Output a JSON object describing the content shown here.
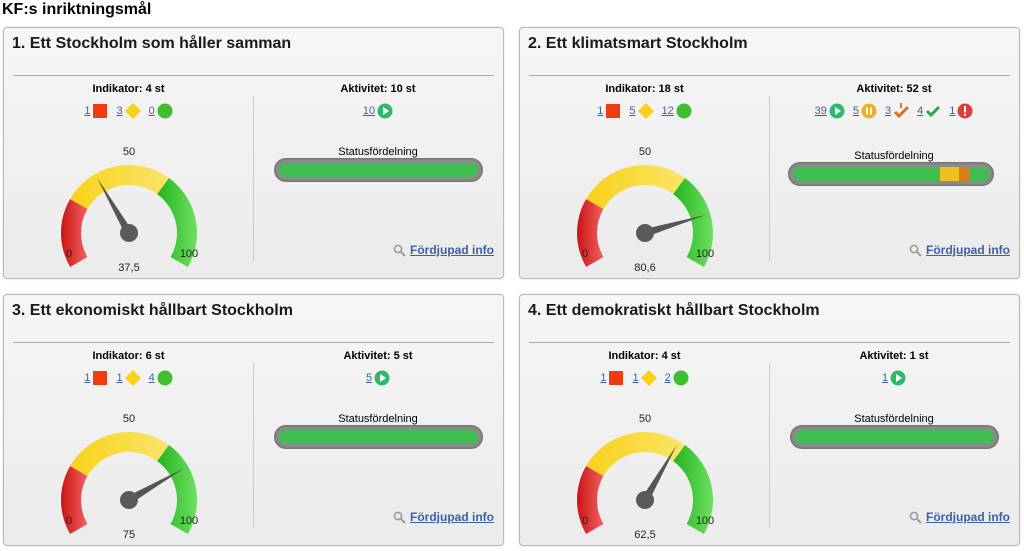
{
  "page_title": "KF:s inriktningsmål",
  "colors": {
    "red": "#f03a10",
    "yellow": "#f8cf19",
    "green": "#3fbf2f",
    "play": "#2fb86a",
    "pause": "#f0b020",
    "warn": "#e06f1a",
    "check": "#2ea84a",
    "alert": "#e23c3c",
    "bar_green": "#3fbf4f"
  },
  "cards": [
    {
      "title": "1. Ett Stockholm som håller samman",
      "indicator_heading": "Indikator: 4 st",
      "indicators": [
        {
          "count": "1",
          "icon": "red-square-icon"
        },
        {
          "count": "3",
          "icon": "yellow-diamond-icon"
        },
        {
          "count": "0",
          "icon": "green-circle-icon"
        }
      ],
      "activity_heading": "Aktivitet: 10 st",
      "activities": [
        {
          "count": "10",
          "icon": "play-icon"
        }
      ],
      "gauge": {
        "value": 37.5,
        "value_label": "37,5",
        "min_label": "0",
        "mid_label": "50",
        "max_label": "100",
        "min": 0,
        "max": 100
      },
      "status_label": "Statusfördelning",
      "status_distribution": [
        {
          "fraction": 1.0,
          "color": "#3fbf4f"
        }
      ],
      "more_info": "Fördjupad info"
    },
    {
      "title": "2. Ett klimatsmart Stockholm",
      "indicator_heading": "Indikator: 18 st",
      "indicators": [
        {
          "count": "1",
          "icon": "red-square-icon"
        },
        {
          "count": "5",
          "icon": "yellow-diamond-icon"
        },
        {
          "count": "12",
          "icon": "green-circle-icon"
        }
      ],
      "activity_heading": "Aktivitet: 52 st",
      "activities": [
        {
          "count": "39",
          "icon": "play-icon"
        },
        {
          "count": "5",
          "icon": "pause-icon"
        },
        {
          "count": "3",
          "icon": "warning-check-icon"
        },
        {
          "count": "4",
          "icon": "check-icon"
        },
        {
          "count": "1",
          "icon": "alert-icon"
        }
      ],
      "gauge": {
        "value": 80.6,
        "value_label": "80,6",
        "min_label": "0",
        "mid_label": "50",
        "max_label": "100",
        "min": 0,
        "max": 100
      },
      "status_label": "Statusfördelning",
      "status_distribution": [
        {
          "fraction": 0.75,
          "color": "#3fbf4f"
        },
        {
          "fraction": 0.096,
          "color": "#f0c020"
        },
        {
          "fraction": 0.058,
          "color": "#e07a1a"
        },
        {
          "fraction": 0.096,
          "color": "#3fbf4f"
        }
      ],
      "more_info": "Fördjupad info"
    },
    {
      "title": "3. Ett ekonomiskt hållbart Stockholm",
      "indicator_heading": "Indikator: 6 st",
      "indicators": [
        {
          "count": "1",
          "icon": "red-square-icon"
        },
        {
          "count": "1",
          "icon": "yellow-diamond-icon"
        },
        {
          "count": "4",
          "icon": "green-circle-icon"
        }
      ],
      "activity_heading": "Aktivitet: 5 st",
      "activities": [
        {
          "count": "5",
          "icon": "play-icon"
        }
      ],
      "gauge": {
        "value": 75,
        "value_label": "75",
        "min_label": "0",
        "mid_label": "50",
        "max_label": "100",
        "min": 0,
        "max": 100
      },
      "status_label": "Statusfördelning",
      "status_distribution": [
        {
          "fraction": 1.0,
          "color": "#3fbf4f"
        }
      ],
      "more_info": "Fördjupad info"
    },
    {
      "title": "4. Ett demokratiskt hållbart Stockholm",
      "indicator_heading": "Indikator: 4 st",
      "indicators": [
        {
          "count": "1",
          "icon": "red-square-icon"
        },
        {
          "count": "1",
          "icon": "yellow-diamond-icon"
        },
        {
          "count": "2",
          "icon": "green-circle-icon"
        }
      ],
      "activity_heading": "Aktivitet: 1 st",
      "activities": [
        {
          "count": "1",
          "icon": "play-icon"
        }
      ],
      "gauge": {
        "value": 62.5,
        "value_label": "62,5",
        "min_label": "0",
        "mid_label": "50",
        "max_label": "100",
        "min": 0,
        "max": 100
      },
      "status_label": "Statusfördelning",
      "status_distribution": [
        {
          "fraction": 1.0,
          "color": "#3fbf4f"
        }
      ],
      "more_info": "Fördjupad info"
    }
  ]
}
